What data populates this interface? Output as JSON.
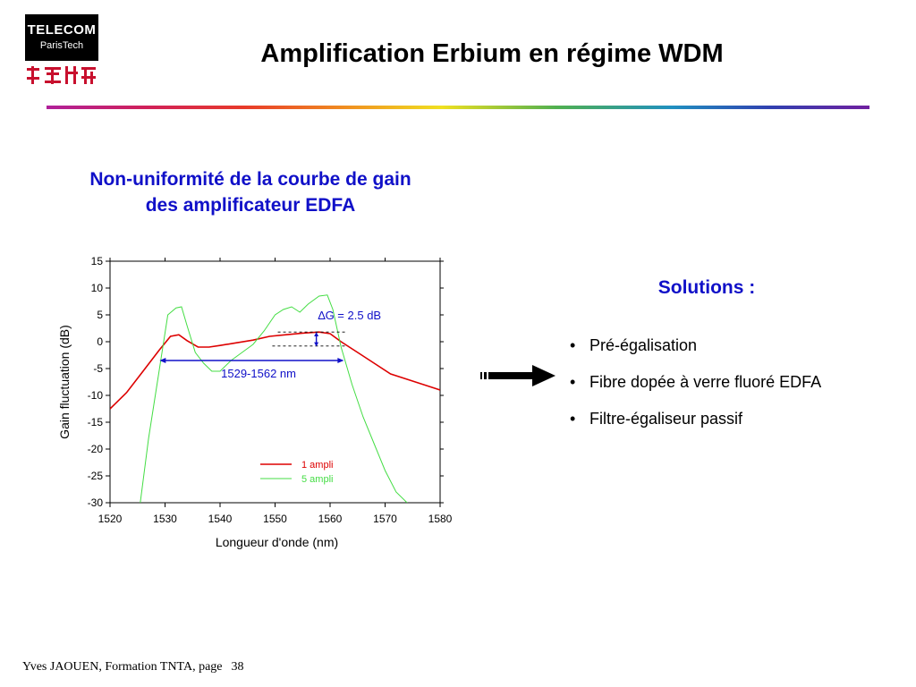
{
  "header": {
    "logo_line1": "TELECOM",
    "logo_line2": "ParisTech",
    "title": "Amplification Erbium en régime WDM"
  },
  "subtitle_line1": "Non-uniformité de la courbe de gain",
  "subtitle_line2": "des amplificateur EDFA",
  "solutions": {
    "title": "Solutions :",
    "items": [
      "Pré-égalisation",
      "Fibre dopée à verre fluoré EDFA",
      "Filtre-égaliseur passif"
    ],
    "bullet": "•"
  },
  "footer": {
    "text": "Yves JAOUEN, Formation TNTA, page",
    "page": "38"
  },
  "colors": {
    "title_blue": "#1010c8",
    "series1": "#dd0000",
    "series2": "#44dd44"
  },
  "chart_data": {
    "type": "line",
    "xlabel": "Longueur d'onde (nm)",
    "ylabel": "Gain fluctuation (dB)",
    "xlim": [
      1520,
      1580
    ],
    "ylim": [
      -30,
      15
    ],
    "xticks": [
      1520,
      1530,
      1540,
      1550,
      1560,
      1570,
      1580
    ],
    "yticks": [
      15,
      10,
      5,
      0,
      -5,
      -10,
      -15,
      -20,
      -25,
      -30
    ],
    "grid": false,
    "legend_position": "bottom-right",
    "series": [
      {
        "name": "1 ampli",
        "x": [
          1520,
          1523,
          1526,
          1529,
          1531,
          1532.5,
          1534,
          1536,
          1538,
          1540,
          1543,
          1546,
          1549,
          1552,
          1555,
          1558,
          1560,
          1562,
          1565,
          1568,
          1571,
          1574,
          1577,
          1580
        ],
        "y": [
          -12.5,
          -9.5,
          -5.5,
          -1.5,
          1,
          1.3,
          0.2,
          -1,
          -1,
          -0.7,
          -0.2,
          0.3,
          1,
          1.3,
          1.6,
          1.8,
          1.5,
          0,
          -2,
          -4,
          -6,
          -7,
          -8,
          -9
        ]
      },
      {
        "name": "5 ampli",
        "x": [
          1525.5,
          1527,
          1529,
          1530.5,
          1532,
          1533,
          1534,
          1535.5,
          1537,
          1538.5,
          1540,
          1542,
          1544,
          1546,
          1548,
          1550,
          1551.5,
          1553,
          1554.5,
          1556,
          1558,
          1559.5,
          1560.5,
          1562,
          1564,
          1566,
          1568,
          1570,
          1572,
          1574
        ],
        "y": [
          -30,
          -18,
          -5,
          5,
          6.3,
          6.5,
          3,
          -2,
          -4,
          -5.5,
          -5.5,
          -3.5,
          -2,
          -0.5,
          2,
          5,
          6,
          6.5,
          5.5,
          7,
          8.5,
          8.7,
          6,
          -1,
          -8,
          -14,
          -19,
          -24,
          -28,
          -30
        ]
      }
    ],
    "annotations": {
      "deltaG": "∆G = 2.5 dB",
      "range": "1529-1562 nm"
    }
  }
}
